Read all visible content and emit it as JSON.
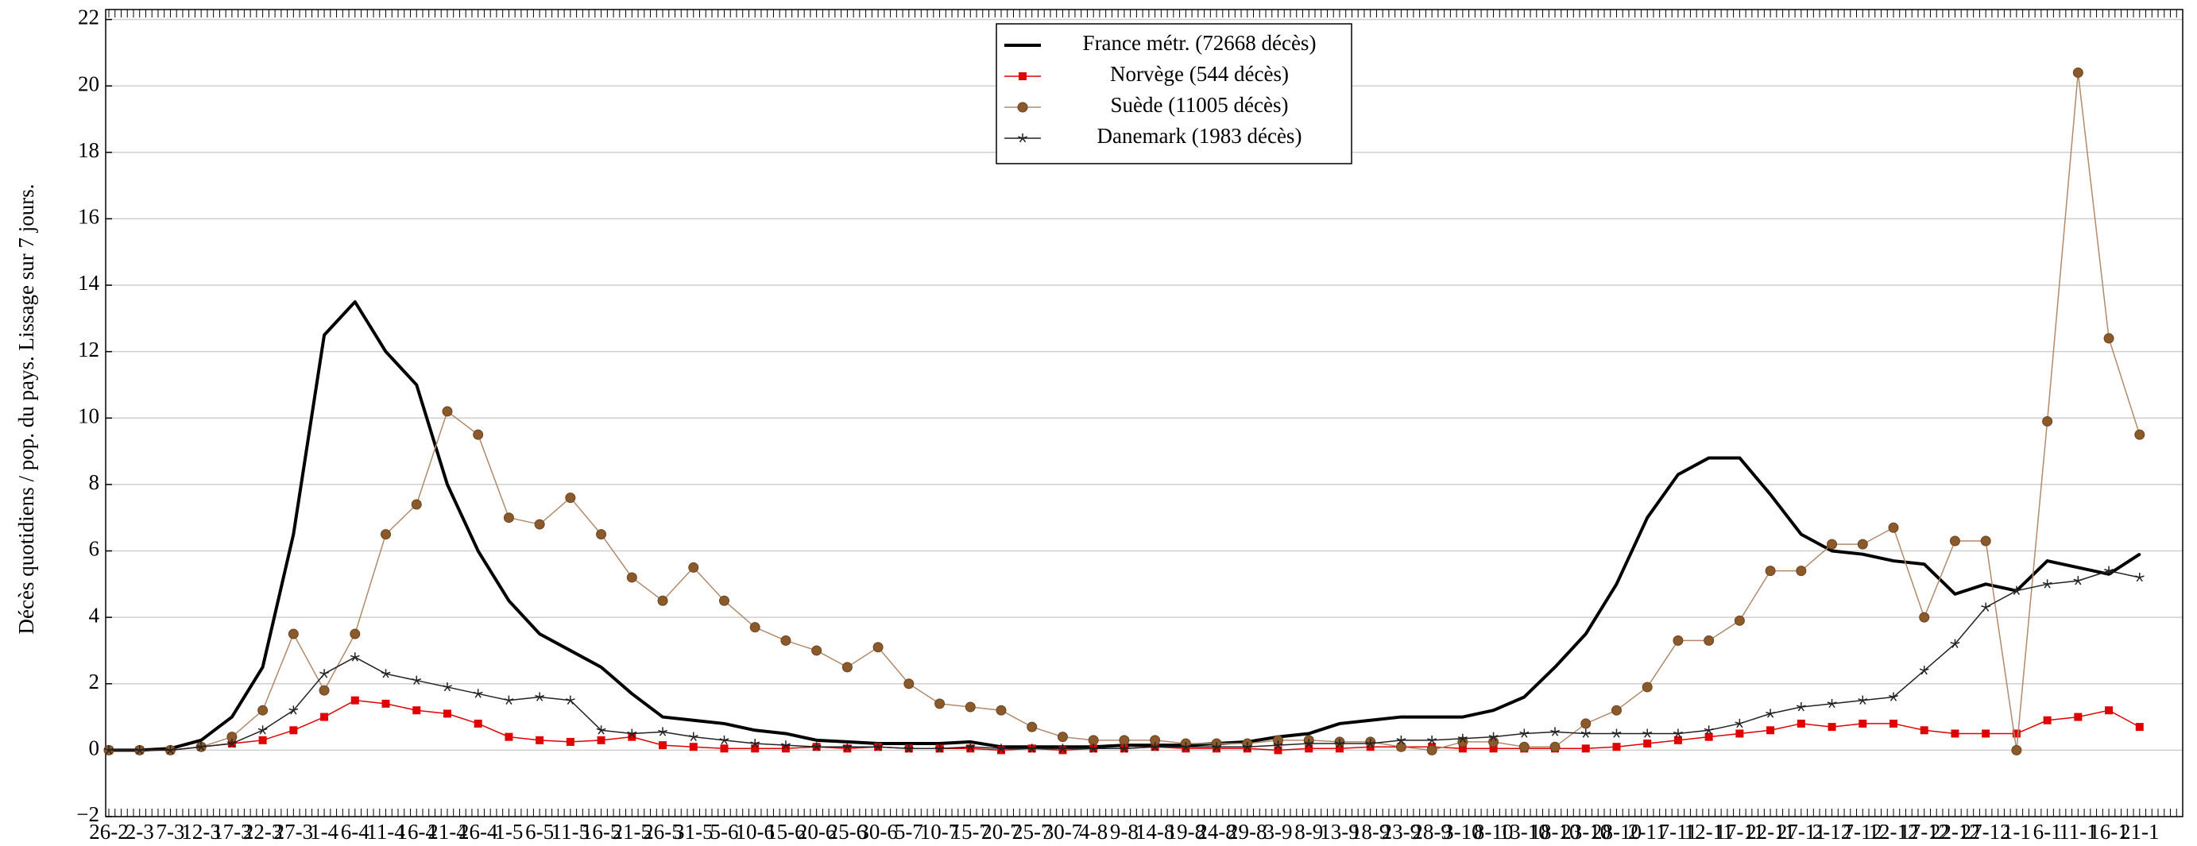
{
  "chart_data": {
    "type": "line",
    "y_label": "Décès quotidiens / pop. du pays. Lissage sur 7 jours.",
    "categories": [
      "26-2",
      "2-3",
      "7-3",
      "12-3",
      "17-3",
      "22-3",
      "27-3",
      "1-4",
      "6-4",
      "11-4",
      "16-4",
      "21-4",
      "26-4",
      "1-5",
      "6-5",
      "11-5",
      "16-5",
      "21-5",
      "26-5",
      "31-5",
      "5-6",
      "10-6",
      "15-6",
      "20-6",
      "25-6",
      "30-6",
      "5-7",
      "10-7",
      "15-7",
      "20-7",
      "25-7",
      "30-7",
      "4-8",
      "9-8",
      "14-8",
      "19-8",
      "24-8",
      "29-8",
      "3-9",
      "8-9",
      "13-9",
      "18-9",
      "23-9",
      "28-9",
      "3-10",
      "8-10",
      "13-10",
      "18-10",
      "23-10",
      "28-10",
      "2-11",
      "7-11",
      "12-11",
      "17-11",
      "22-11",
      "27-11",
      "2-12",
      "7-12",
      "12-12",
      "17-12",
      "22-12",
      "27-12",
      "1-1",
      "6-1",
      "11-1",
      "16-1",
      "21-1"
    ],
    "series": [
      {
        "name": "France métr. (72668 décès)",
        "color": "#000000",
        "marker": "none",
        "values": [
          0,
          0,
          0.05,
          0.3,
          1.0,
          2.5,
          6.5,
          12.5,
          13.5,
          12,
          11,
          8,
          6,
          4.5,
          3.5,
          3.0,
          2.5,
          1.7,
          1.0,
          0.9,
          0.8,
          0.6,
          0.5,
          0.3,
          0.25,
          0.2,
          0.2,
          0.2,
          0.25,
          0.1,
          0.1,
          0.1,
          0.1,
          0.15,
          0.15,
          0.15,
          0.2,
          0.25,
          0.4,
          0.5,
          0.8,
          0.9,
          1.0,
          1.0,
          1.0,
          1.2,
          1.6,
          2.5,
          3.5,
          5.0,
          7.0,
          8.3,
          8.8,
          8.8,
          7.7,
          6.5,
          6.0,
          5.9,
          5.7,
          5.6,
          4.7,
          5.0,
          4.8,
          5.7,
          5.5,
          5.3,
          5.9
        ]
      },
      {
        "name": "Norvège (544 décès)",
        "color": "#e00000",
        "marker": "square",
        "values": [
          0,
          0,
          0,
          0.1,
          0.2,
          0.3,
          0.6,
          1.0,
          1.5,
          1.4,
          1.2,
          1.1,
          0.8,
          0.4,
          0.3,
          0.25,
          0.3,
          0.4,
          0.15,
          0.1,
          0.05,
          0.05,
          0.05,
          0.1,
          0.05,
          0.1,
          0.05,
          0.05,
          0.05,
          0,
          0.05,
          0,
          0.05,
          0.05,
          0.1,
          0.05,
          0.05,
          0.05,
          0,
          0.05,
          0.05,
          0.1,
          0.1,
          0.1,
          0.05,
          0.05,
          0.05,
          0.05,
          0.05,
          0.1,
          0.2,
          0.3,
          0.4,
          0.5,
          0.6,
          0.8,
          0.7,
          0.8,
          0.8,
          0.6,
          0.5,
          0.5,
          0.5,
          0.9,
          1.0,
          1.2,
          0.7
        ]
      },
      {
        "name": "Suède (11005 décès)",
        "color": "#8b5a2b",
        "marker": "circle",
        "values": [
          0,
          0,
          0,
          0.1,
          0.4,
          1.2,
          3.5,
          1.8,
          3.5,
          6.5,
          7.4,
          10.2,
          9.5,
          7.0,
          6.8,
          7.6,
          6.5,
          5.2,
          4.5,
          5.5,
          4.5,
          3.7,
          3.3,
          3.0,
          2.5,
          3.1,
          2.0,
          1.4,
          1.3,
          1.2,
          0.7,
          0.4,
          0.3,
          0.3,
          0.3,
          0.2,
          0.2,
          0.2,
          0.3,
          0.3,
          0.25,
          0.25,
          0.1,
          0.0,
          0.25,
          0.25,
          0.1,
          0.1,
          0.8,
          1.2,
          1.9,
          3.3,
          3.3,
          3.9,
          5.4,
          5.4,
          6.2,
          6.2,
          6.7,
          4.0,
          6.3,
          6.3,
          0,
          9.9,
          20.4,
          12.4,
          9.5
        ]
      },
      {
        "name": "Danemark (1983 décès)",
        "color": "#222222",
        "marker": "star",
        "values": [
          0,
          0,
          0,
          0.1,
          0.2,
          0.6,
          1.2,
          2.3,
          2.8,
          2.3,
          2.1,
          1.9,
          1.7,
          1.5,
          1.6,
          1.5,
          0.6,
          0.5,
          0.55,
          0.4,
          0.3,
          0.2,
          0.15,
          0.1,
          0.1,
          0.1,
          0.05,
          0.05,
          0.1,
          0.05,
          0.05,
          0.05,
          0.05,
          0.05,
          0.1,
          0.1,
          0.1,
          0.1,
          0.15,
          0.2,
          0.2,
          0.2,
          0.3,
          0.3,
          0.35,
          0.4,
          0.5,
          0.55,
          0.5,
          0.5,
          0.5,
          0.5,
          0.6,
          0.8,
          1.1,
          1.3,
          1.4,
          1.5,
          1.6,
          2.4,
          3.2,
          4.3,
          4.8,
          5.0,
          5.1,
          5.4,
          5.2
        ]
      }
    ],
    "ylim": [
      -2,
      22.3
    ],
    "yticks": [
      {
        "value": -2,
        "label": "−2"
      },
      0,
      2,
      4,
      6,
      8,
      10,
      12,
      14,
      16,
      18,
      20,
      22
    ],
    "grid": true,
    "legend": "top"
  }
}
